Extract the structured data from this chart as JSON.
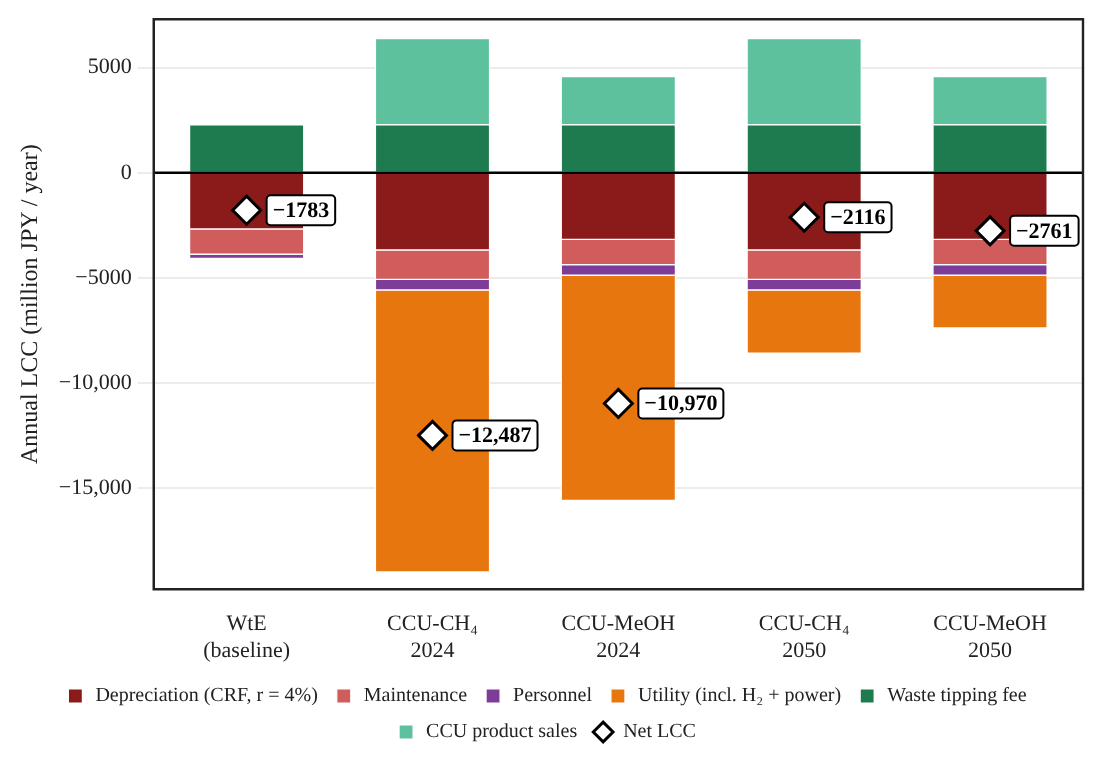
{
  "chart_data": {
    "type": "bar",
    "stacked": true,
    "ylabel": "Annual LCC (million JPY / year)",
    "categories": [
      "WtE\n(baseline)",
      "CCU-CH₄\n2024",
      "CCU-MeOH\n2024",
      "CCU-CH₄\n2050",
      "CCU-MeOH\n2050"
    ],
    "series": [
      {
        "name": "Depreciation (CRF, r = 4%)",
        "color": "#8b1a1a",
        "values": [
          -2700,
          -3700,
          -3200,
          -3700,
          -3200
        ]
      },
      {
        "name": "Maintenance",
        "color": "#d05c5c",
        "values": [
          -1200,
          -1400,
          -1200,
          -1400,
          -1200
        ]
      },
      {
        "name": "Personnel",
        "color": "#7d3c98",
        "values": [
          -200,
          -500,
          -500,
          -500,
          -500
        ]
      },
      {
        "name": "Utility (incl. H₂ + power)",
        "color": "#e8760f",
        "values": [
          0,
          -13400,
          -10700,
          -3000,
          -2500
        ]
      },
      {
        "name": "Waste tipping fee",
        "color": "#1e7a4f",
        "values": [
          2300,
          2300,
          2300,
          2300,
          2300
        ]
      },
      {
        "name": "CCU product sales",
        "color": "#5cc19c",
        "values": [
          0,
          4100,
          2300,
          4100,
          2300
        ]
      },
      {
        "name": "Net LCC",
        "type": "scatter",
        "marker": "diamond",
        "color": "#ffffff",
        "values": [
          -1783,
          -12487,
          -10970,
          -2116,
          -2761
        ],
        "value_labels": [
          "−1783",
          "−12,487",
          "−10,970",
          "−2116",
          "−2761"
        ]
      }
    ],
    "ylim": [
      -19800,
      7300
    ],
    "yticks": [
      {
        "value": -15000,
        "label": "−15,000"
      },
      {
        "value": -10000,
        "label": "−10,000"
      },
      {
        "value": -5000,
        "label": "−5000"
      },
      0,
      5000
    ],
    "ref_lines": [
      {
        "axis": "y",
        "value": 0,
        "color": "#000000"
      }
    ],
    "grid": "y",
    "legend": "bottom"
  }
}
